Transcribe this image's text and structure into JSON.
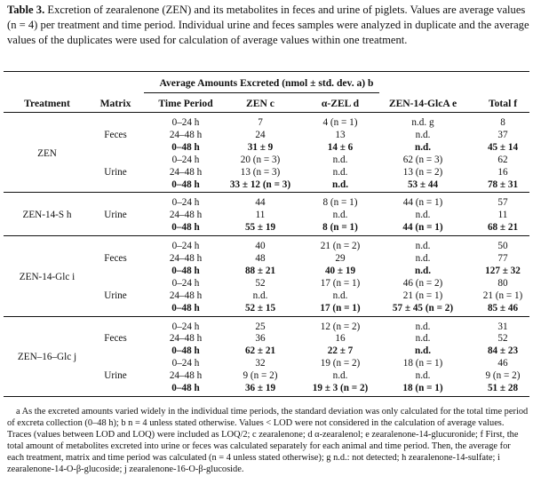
{
  "caption": {
    "label": "Table 3.",
    "text": "Excretion of zearalenone (ZEN) and its metabolites in feces and urine of piglets. Values are average values (n = 4) per treatment and time period. Individual urine and feces samples were analyzed in duplicate and the average values of the duplicates were used for calculation of average values within one treatment."
  },
  "table": {
    "group_header": "Average Amounts Excreted (nmol ± std. dev. a) b",
    "columns": [
      "Treatment",
      "Matrix",
      "Time Period",
      "ZEN c",
      "α-ZEL d",
      "ZEN-14-GlcA e",
      "Total f"
    ],
    "treatments": [
      {
        "name": "ZEN",
        "matrices": [
          {
            "name": "Feces",
            "rows": [
              {
                "time": "0–24 h",
                "zen": "7",
                "azel": "4 (n = 1)",
                "glca": "n.d. g",
                "total": "8",
                "bold": false
              },
              {
                "time": "24–48 h",
                "zen": "24",
                "azel": "13",
                "glca": "n.d.",
                "total": "37",
                "bold": false
              },
              {
                "time": "0–48 h",
                "zen": "31 ± 9",
                "azel": "14 ± 6",
                "glca": "n.d.",
                "total": "45 ± 14",
                "bold": true
              }
            ]
          },
          {
            "name": "Urine",
            "rows": [
              {
                "time": "0–24 h",
                "zen": "20 (n = 3)",
                "azel": "n.d.",
                "glca": "62 (n = 3)",
                "total": "62",
                "bold": false
              },
              {
                "time": "24–48 h",
                "zen": "13 (n = 3)",
                "azel": "n.d.",
                "glca": "13 (n = 2)",
                "total": "16",
                "bold": false
              },
              {
                "time": "0–48 h",
                "zen": "33 ± 12 (n = 3)",
                "azel": "n.d.",
                "glca": "53 ± 44",
                "total": "78 ± 31",
                "bold": true
              }
            ]
          }
        ]
      },
      {
        "name": "ZEN-14-S h",
        "matrices": [
          {
            "name": "Urine",
            "rows": [
              {
                "time": "0–24 h",
                "zen": "44",
                "azel": "8 (n = 1)",
                "glca": "44 (n = 1)",
                "total": "57",
                "bold": false
              },
              {
                "time": "24–48 h",
                "zen": "11",
                "azel": "n.d.",
                "glca": "n.d.",
                "total": "11",
                "bold": false
              },
              {
                "time": "0–48 h",
                "zen": "55 ± 19",
                "azel": "8 (n = 1)",
                "glca": "44 (n = 1)",
                "total": "68 ± 21",
                "bold": true
              }
            ]
          }
        ]
      },
      {
        "name": "ZEN-14-Glc i",
        "matrices": [
          {
            "name": "Feces",
            "rows": [
              {
                "time": "0–24 h",
                "zen": "40",
                "azel": "21 (n = 2)",
                "glca": "n.d.",
                "total": "50",
                "bold": false
              },
              {
                "time": "24–48 h",
                "zen": "48",
                "azel": "29",
                "glca": "n.d.",
                "total": "77",
                "bold": false
              },
              {
                "time": "0–48 h",
                "zen": "88 ± 21",
                "azel": "40 ± 19",
                "glca": "n.d.",
                "total": "127 ± 32",
                "bold": true
              }
            ]
          },
          {
            "name": "Urine",
            "rows": [
              {
                "time": "0–24 h",
                "zen": "52",
                "azel": "17 (n = 1)",
                "glca": "46 (n = 2)",
                "total": "80",
                "bold": false
              },
              {
                "time": "24–48 h",
                "zen": "n.d.",
                "azel": "n.d.",
                "glca": "21 (n = 1)",
                "total": "21 (n = 1)",
                "bold": false
              },
              {
                "time": "0–48 h",
                "zen": "52 ± 15",
                "azel": "17 (n = 1)",
                "glca": "57 ± 45 (n = 2)",
                "total": "85 ± 46",
                "bold": true
              }
            ]
          }
        ]
      },
      {
        "name": "ZEN–16–Glc j",
        "matrices": [
          {
            "name": "Feces",
            "rows": [
              {
                "time": "0–24 h",
                "zen": "25",
                "azel": "12 (n = 2)",
                "glca": "n.d.",
                "total": "31",
                "bold": false
              },
              {
                "time": "24–48 h",
                "zen": "36",
                "azel": "16",
                "glca": "n.d.",
                "total": "52",
                "bold": false
              },
              {
                "time": "0–48 h",
                "zen": "62 ± 21",
                "azel": "22 ± 7",
                "glca": "n.d.",
                "total": "84 ± 23",
                "bold": true
              }
            ]
          },
          {
            "name": "Urine",
            "rows": [
              {
                "time": "0–24 h",
                "zen": "32",
                "azel": "19 (n = 2)",
                "glca": "18 (n = 1)",
                "total": "46",
                "bold": false
              },
              {
                "time": "24–48 h",
                "zen": "9 (n = 2)",
                "azel": "n.d.",
                "glca": "n.d.",
                "total": "9 (n = 2)",
                "bold": false
              },
              {
                "time": "0–48 h",
                "zen": "36 ± 19",
                "azel": "19 ± 3 (n = 2)",
                "glca": "18 (n = 1)",
                "total": "51 ± 28",
                "bold": true
              }
            ]
          }
        ]
      }
    ]
  },
  "footnote": "a As the excreted amounts varied widely in the individual time periods, the standard deviation was only calculated for the total time period of excreta collection (0–48 h); b n = 4 unless stated otherwise. Values < LOD were not considered in the calculation of average values. Traces (values between LOD and LOQ) were included as LOQ/2; c zearalenone; d α-zearalenol; e zearalenone-14-glucuronide; f First, the total amount of metabolites excreted into urine or feces was calculated separately for each animal and time period. Then, the average for each treatment, matrix and time period was calculated (n = 4 unless stated otherwise); g n.d.: not detected; h zearalenone-14-sulfate; i zearalenone-14-O-β-glucoside; j zearalenone-16-O-β-glucoside."
}
